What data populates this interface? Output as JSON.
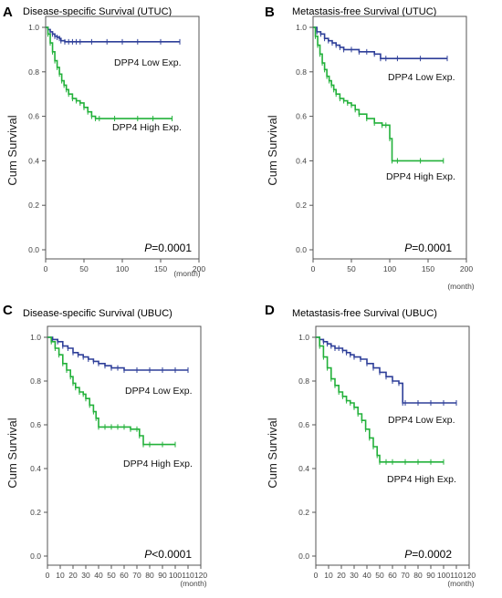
{
  "colors": {
    "low": "#2e3f99",
    "high": "#22b13a",
    "axis": "#555555"
  },
  "chart_data": [
    {
      "type": "line",
      "panel_label": "A",
      "title": "Disease-specific Survival (UTUC)",
      "ylabel": "Cum Survival",
      "xunit": "(month)",
      "xlim": [
        0,
        200
      ],
      "ylim": [
        0,
        1
      ],
      "xticks": [
        "0",
        "50",
        "100",
        "150",
        "200"
      ],
      "yticks": [
        "0.0",
        "0.2",
        "0.4",
        "0.6",
        "0.8",
        "1.0"
      ],
      "p_prefix": "P",
      "p_rest": "=0.0001",
      "series": [
        {
          "name": "DPP4 Low Exp.",
          "color": "low",
          "x": [
            0,
            3,
            6,
            9,
            12,
            15,
            18,
            20,
            25,
            30,
            35,
            40,
            45,
            60,
            80,
            100,
            120,
            150,
            175
          ],
          "y": [
            1.0,
            0.99,
            0.98,
            0.97,
            0.96,
            0.955,
            0.95,
            0.94,
            0.935,
            0.935,
            0.935,
            0.935,
            0.935,
            0.935,
            0.935,
            0.935,
            0.935,
            0.935,
            0.935
          ]
        },
        {
          "name": "DPP4 High Exp.",
          "color": "high",
          "x": [
            0,
            3,
            6,
            9,
            12,
            15,
            18,
            21,
            24,
            27,
            30,
            35,
            40,
            45,
            50,
            55,
            60,
            65,
            70,
            90,
            120,
            140,
            165
          ],
          "y": [
            1.0,
            0.97,
            0.93,
            0.89,
            0.85,
            0.82,
            0.79,
            0.76,
            0.74,
            0.72,
            0.7,
            0.68,
            0.67,
            0.66,
            0.64,
            0.62,
            0.6,
            0.59,
            0.59,
            0.59,
            0.59,
            0.59,
            0.59
          ]
        }
      ]
    },
    {
      "type": "line",
      "panel_label": "B",
      "title": "Metastasis-free Survival (UTUC)",
      "ylabel": "Cum Survival",
      "xunit": "(month)",
      "xlim": [
        0,
        200
      ],
      "ylim": [
        0,
        1
      ],
      "xticks": [
        "0",
        "50",
        "100",
        "150",
        "200"
      ],
      "yticks": [
        "0.0",
        "0.2",
        "0.4",
        "0.6",
        "0.8",
        "1.0"
      ],
      "p_prefix": "P",
      "p_rest": "=0.0001",
      "series": [
        {
          "name": "DPP4 Low Exp.",
          "color": "low",
          "x": [
            0,
            5,
            10,
            15,
            20,
            25,
            30,
            35,
            40,
            50,
            60,
            70,
            80,
            88,
            95,
            110,
            140,
            175
          ],
          "y": [
            1.0,
            0.98,
            0.97,
            0.95,
            0.94,
            0.93,
            0.92,
            0.91,
            0.9,
            0.9,
            0.89,
            0.89,
            0.88,
            0.86,
            0.86,
            0.86,
            0.86,
            0.86
          ]
        },
        {
          "name": "DPP4 High Exp.",
          "color": "high",
          "x": [
            0,
            3,
            6,
            9,
            12,
            15,
            18,
            21,
            24,
            27,
            30,
            35,
            40,
            45,
            50,
            55,
            60,
            70,
            80,
            90,
            95,
            100,
            103,
            110,
            140,
            170
          ],
          "y": [
            1.0,
            0.96,
            0.92,
            0.88,
            0.84,
            0.81,
            0.78,
            0.76,
            0.74,
            0.72,
            0.7,
            0.68,
            0.67,
            0.66,
            0.65,
            0.63,
            0.61,
            0.59,
            0.57,
            0.56,
            0.56,
            0.5,
            0.4,
            0.4,
            0.4,
            0.4
          ]
        }
      ]
    },
    {
      "type": "line",
      "panel_label": "C",
      "title": "Disease-specific Survival (UBUC)",
      "ylabel": "Cum Survival",
      "xunit": "(month)",
      "xlim": [
        0,
        120
      ],
      "ylim": [
        0,
        1
      ],
      "xticks": [
        "0",
        "10",
        "20",
        "30",
        "40",
        "50",
        "60",
        "70",
        "80",
        "90",
        "100",
        "110",
        "120"
      ],
      "yticks": [
        "0.0",
        "0.2",
        "0.4",
        "0.6",
        "0.8",
        "1.0"
      ],
      "p_prefix": "P",
      "p_rest": "<0.0001",
      "series": [
        {
          "name": "DPP4 Low Exp.",
          "color": "low",
          "x": [
            0,
            4,
            8,
            12,
            16,
            20,
            24,
            28,
            32,
            36,
            40,
            45,
            50,
            55,
            60,
            70,
            80,
            90,
            100,
            110
          ],
          "y": [
            1.0,
            0.99,
            0.98,
            0.96,
            0.95,
            0.93,
            0.92,
            0.91,
            0.9,
            0.89,
            0.88,
            0.87,
            0.86,
            0.86,
            0.85,
            0.85,
            0.85,
            0.85,
            0.85,
            0.85
          ]
        },
        {
          "name": "DPP4 High Exp.",
          "color": "high",
          "x": [
            0,
            3,
            6,
            9,
            12,
            15,
            18,
            20,
            22,
            25,
            28,
            30,
            33,
            36,
            38,
            40,
            45,
            50,
            55,
            60,
            65,
            70,
            72,
            75,
            80,
            90,
            100
          ],
          "y": [
            1.0,
            0.98,
            0.95,
            0.92,
            0.88,
            0.85,
            0.82,
            0.79,
            0.77,
            0.75,
            0.74,
            0.72,
            0.69,
            0.66,
            0.63,
            0.59,
            0.59,
            0.59,
            0.59,
            0.59,
            0.58,
            0.58,
            0.55,
            0.51,
            0.51,
            0.51,
            0.51
          ]
        }
      ]
    },
    {
      "type": "line",
      "panel_label": "D",
      "title": "Metastasis-free Survival (UBUC)",
      "ylabel": "Cum Survival",
      "xunit": "(month)",
      "xlim": [
        0,
        120
      ],
      "ylim": [
        0,
        1
      ],
      "xticks": [
        "0",
        "10",
        "20",
        "30",
        "40",
        "50",
        "60",
        "70",
        "80",
        "90",
        "100",
        "110",
        "120"
      ],
      "yticks": [
        "0.0",
        "0.2",
        "0.4",
        "0.6",
        "0.8",
        "1.0"
      ],
      "p_prefix": "P",
      "p_rest": "=0.0002",
      "series": [
        {
          "name": "DPP4 Low Exp.",
          "color": "low",
          "x": [
            0,
            3,
            6,
            9,
            12,
            15,
            18,
            21,
            24,
            27,
            30,
            35,
            40,
            45,
            50,
            55,
            60,
            65,
            68,
            70,
            80,
            90,
            100,
            110
          ],
          "y": [
            1.0,
            0.99,
            0.98,
            0.97,
            0.96,
            0.95,
            0.95,
            0.94,
            0.93,
            0.92,
            0.91,
            0.9,
            0.88,
            0.86,
            0.84,
            0.82,
            0.8,
            0.79,
            0.7,
            0.7,
            0.7,
            0.7,
            0.7,
            0.7
          ]
        },
        {
          "name": "DPP4 High Exp.",
          "color": "high",
          "x": [
            0,
            3,
            6,
            9,
            12,
            15,
            18,
            21,
            24,
            27,
            30,
            33,
            36,
            39,
            42,
            45,
            48,
            50,
            55,
            60,
            70,
            80,
            90,
            100
          ],
          "y": [
            1.0,
            0.96,
            0.91,
            0.86,
            0.81,
            0.78,
            0.75,
            0.73,
            0.71,
            0.7,
            0.68,
            0.65,
            0.62,
            0.58,
            0.54,
            0.5,
            0.46,
            0.43,
            0.43,
            0.43,
            0.43,
            0.43,
            0.43,
            0.43
          ]
        }
      ]
    }
  ]
}
